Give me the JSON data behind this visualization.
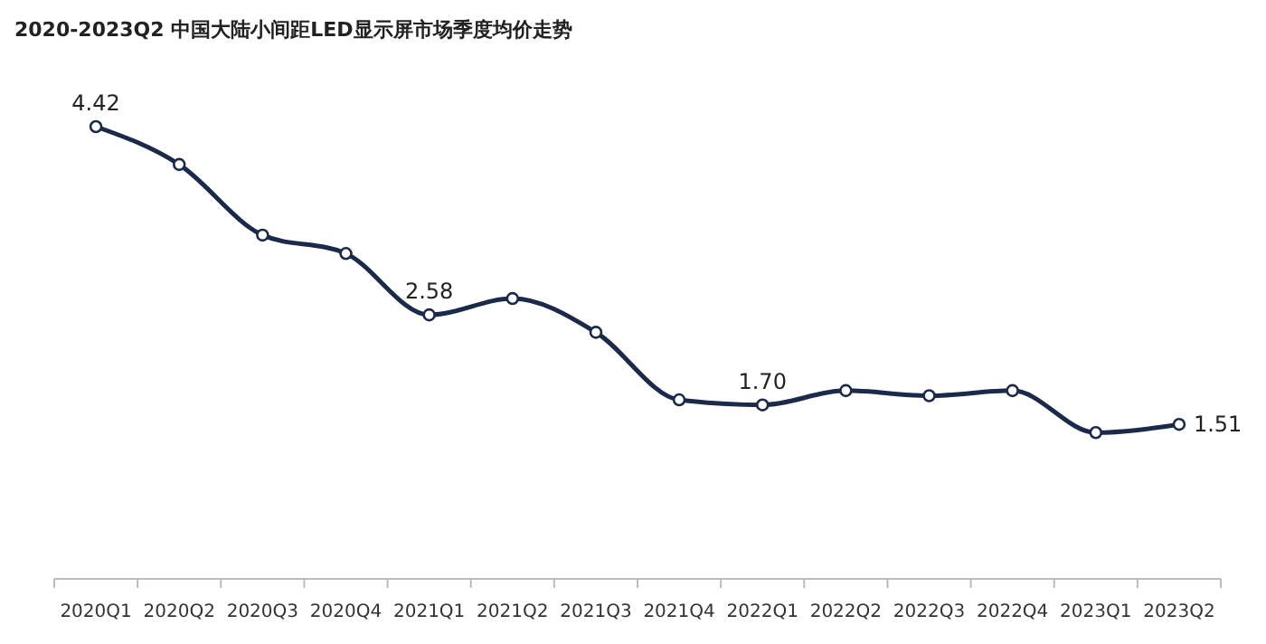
{
  "chart_data": {
    "type": "line",
    "title": "2020-2023Q2 中国大陆小间距LED显示屏市场季度均价走势",
    "categories": [
      "2020Q1",
      "2020Q2",
      "2020Q3",
      "2020Q4",
      "2021Q1",
      "2021Q2",
      "2021Q3",
      "2021Q4",
      "2022Q1",
      "2022Q2",
      "2022Q3",
      "2022Q4",
      "2023Q1",
      "2023Q2"
    ],
    "series": [
      {
        "color": "#1b2a4a",
        "values": [
          4.42,
          4.05,
          3.36,
          3.18,
          2.58,
          2.74,
          2.41,
          1.75,
          1.7,
          1.84,
          1.79,
          1.84,
          1.43,
          1.51
        ],
        "value_labels": [
          "4.42",
          null,
          null,
          null,
          "2.58",
          null,
          null,
          null,
          "1.70",
          null,
          null,
          null,
          null,
          "1.51"
        ]
      }
    ],
    "tick_labels": "x",
    "marker": "circle",
    "line_style": "solid",
    "grid": false
  }
}
